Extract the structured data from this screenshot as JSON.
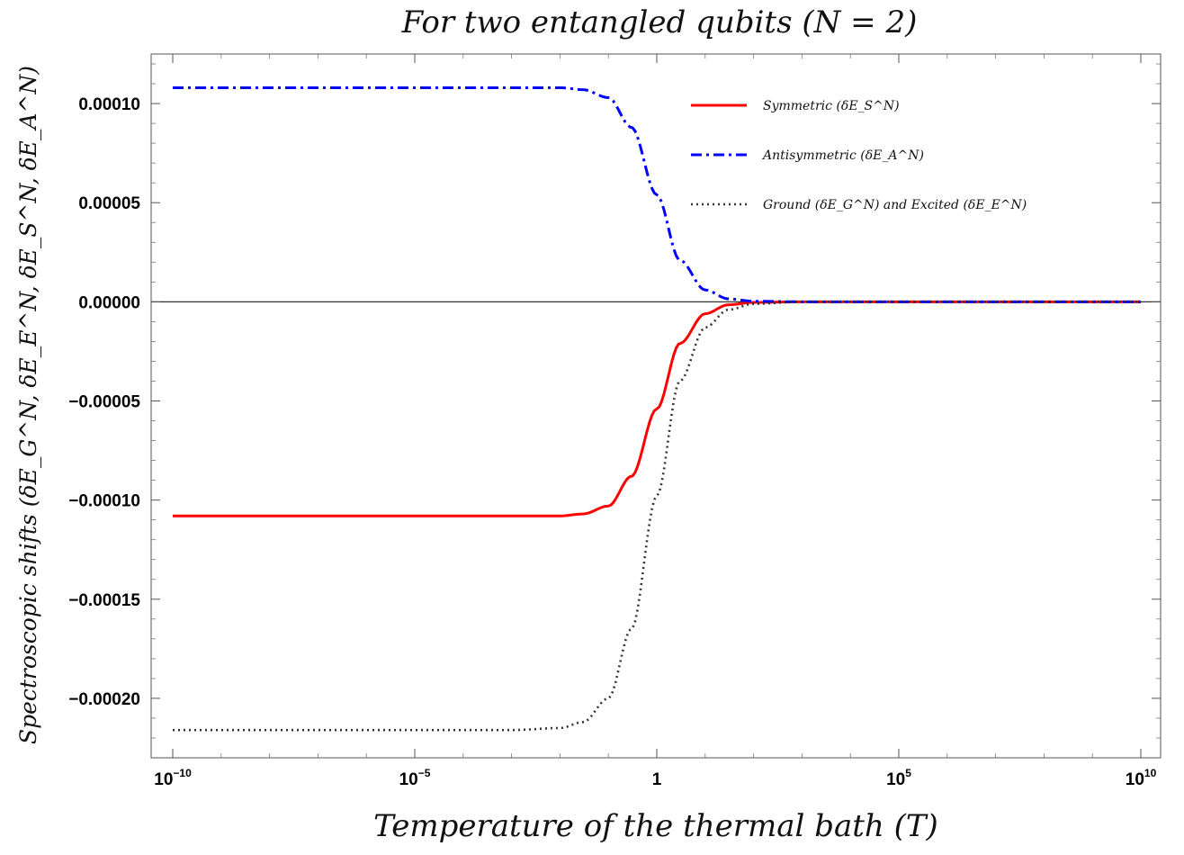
{
  "chart_data": {
    "type": "line",
    "title": "For two entangled qubits (N = 2)",
    "xlabel": "Temperature of the thermal bath (T)",
    "ylabel": "Spectroscopic shifts (δE_G^N, δE_E^N, δE_S^N, δE_A^N)",
    "x_scale": "log",
    "xlim": [
      1e-10,
      10000000000.0
    ],
    "ylim": [
      -0.00023,
      0.000125
    ],
    "x_ticks": [
      {
        "label": "10",
        "exp": "−10"
      },
      {
        "label": "10",
        "exp": "−5"
      },
      {
        "label": "1",
        "exp": ""
      },
      {
        "label": "10",
        "exp": "5"
      },
      {
        "label": "10",
        "exp": "10"
      }
    ],
    "x_tick_values": [
      1e-10,
      1e-05,
      1,
      100000.0,
      10000000000.0
    ],
    "y_ticks": [
      "0.00010",
      "0.00005",
      "0.00000",
      "−0.00005",
      "−0.00010",
      "−0.00015",
      "−0.00020"
    ],
    "y_tick_values": [
      0.0001,
      5e-05,
      0,
      -5e-05,
      -0.0001,
      -0.00015,
      -0.0002
    ],
    "legend_position": "top-right",
    "series": [
      {
        "name": "Symmetric (δE_S^N)",
        "color": "#ff0000",
        "style": "solid",
        "x": [
          1e-10,
          1e-06,
          0.001,
          0.01,
          0.03,
          0.1,
          0.3,
          1,
          3,
          10,
          30,
          100,
          1000,
          100000.0,
          10000000000.0
        ],
        "y": [
          -0.000108,
          -0.000108,
          -0.000108,
          -0.000108,
          -0.000107,
          -0.000103,
          -8.8e-05,
          -5.4e-05,
          -2.1e-05,
          -6e-06,
          -1.5e-06,
          -3e-07,
          0,
          0,
          0
        ]
      },
      {
        "name": "Antisymmetric (δE_A^N)",
        "color": "#0000ff",
        "style": "dashdot",
        "x": [
          1e-10,
          1e-06,
          0.001,
          0.01,
          0.03,
          0.1,
          0.3,
          1,
          3,
          10,
          30,
          100,
          1000,
          100000.0,
          10000000000.0
        ],
        "y": [
          0.000108,
          0.000108,
          0.000108,
          0.000108,
          0.000107,
          0.000103,
          8.8e-05,
          5.4e-05,
          2.1e-05,
          6e-06,
          1.5e-06,
          3e-07,
          0,
          0,
          0
        ]
      },
      {
        "name": "Ground (δE_G^N) and Excited (δE_E^N)",
        "color": "#333333",
        "style": "dotted",
        "x": [
          1e-10,
          1e-06,
          0.001,
          0.01,
          0.03,
          0.1,
          0.3,
          1,
          3,
          10,
          30,
          100,
          1000,
          100000.0,
          10000000000.0
        ],
        "y": [
          -0.000216,
          -0.000216,
          -0.000216,
          -0.000215,
          -0.000212,
          -0.0002,
          -0.000165,
          -9.8e-05,
          -4e-05,
          -1.3e-05,
          -4e-06,
          -1e-06,
          0,
          0,
          0
        ]
      }
    ]
  }
}
